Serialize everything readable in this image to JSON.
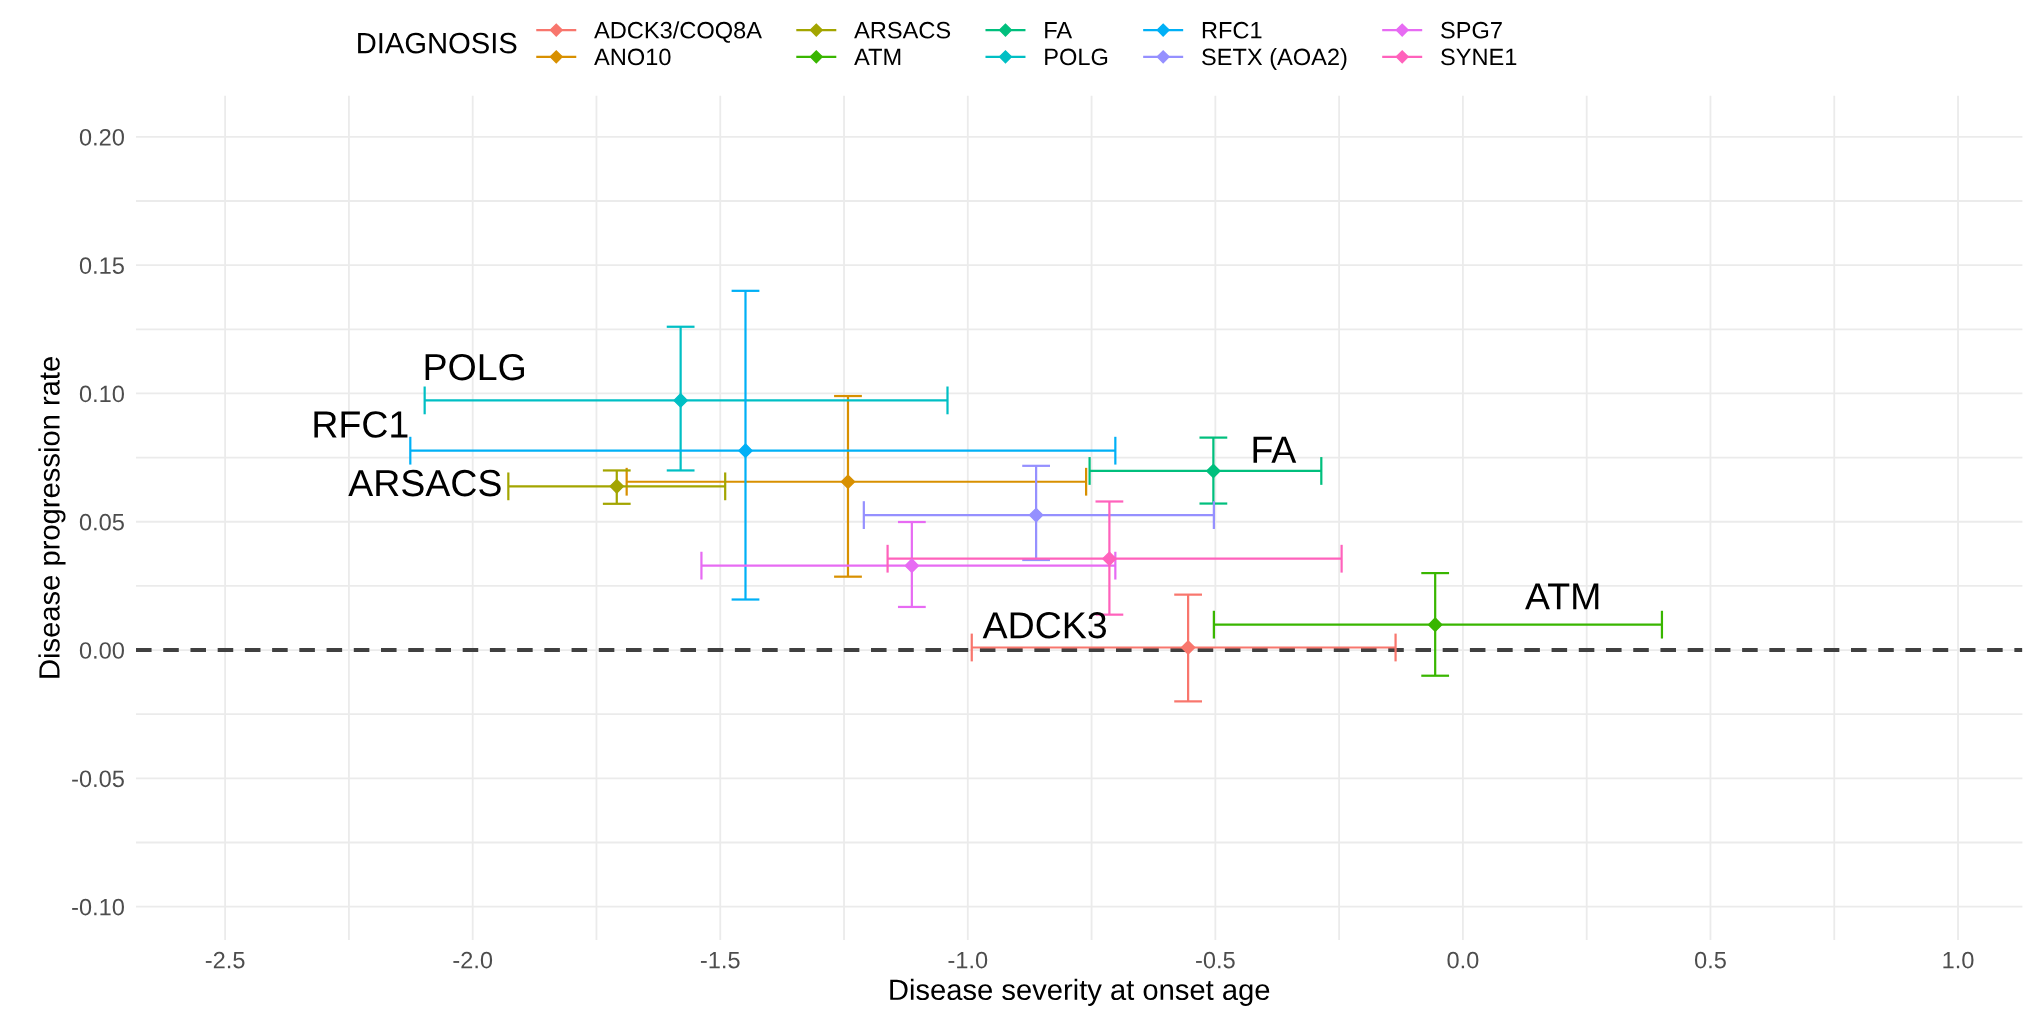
{
  "chart_data": {
    "type": "scatter",
    "xlabel": "Disease severity at onset age",
    "ylabel": "Disease progression rate",
    "legend_title": "DIAGNOSIS",
    "legend": "top",
    "grid": true,
    "marker": "diamond",
    "xlim": [
      -2.68,
      1.13
    ],
    "ylim": [
      -0.113,
      0.216
    ],
    "xticks": [
      -2.5,
      {
        "value": -2.25,
        "label": null
      },
      {
        "value": -2.0,
        "label": "-2.0"
      },
      {
        "value": -1.75,
        "label": null
      },
      -1.5,
      {
        "value": -1.25,
        "label": null
      },
      {
        "value": -1.0,
        "label": "-1.0"
      },
      {
        "value": -0.75,
        "label": null
      },
      -0.5,
      {
        "value": -0.25,
        "label": null
      },
      {
        "value": 0.0,
        "label": "0.0"
      },
      {
        "value": 0.25,
        "label": null
      },
      0.5,
      {
        "value": 0.75,
        "label": null
      },
      {
        "value": 1.0,
        "label": "1.0"
      }
    ],
    "yticks": [
      {
        "value": -0.1,
        "label": "-0.10"
      },
      {
        "value": -0.075,
        "label": null
      },
      {
        "value": -0.05,
        "label": "-0.05"
      },
      {
        "value": -0.025,
        "label": null
      },
      {
        "value": 0.0,
        "label": "0.00"
      },
      {
        "value": 0.025,
        "label": null
      },
      {
        "value": 0.05,
        "label": "0.05"
      },
      {
        "value": 0.075,
        "label": null
      },
      {
        "value": 0.1,
        "label": "0.10"
      },
      {
        "value": 0.125,
        "label": null
      },
      {
        "value": 0.15,
        "label": "0.15"
      },
      {
        "value": 0.175,
        "label": null
      },
      {
        "value": 0.2,
        "label": "0.20"
      }
    ],
    "ref_lines": [
      {
        "axis": "y",
        "value": 0,
        "label": null,
        "color": "#404040",
        "line_style": "dashed"
      }
    ],
    "series": [
      {
        "name": "ADCK3/COQ8A",
        "color": "#f8766d",
        "x": [
          -0.555
        ],
        "values": [
          0.001
        ],
        "errors": [
          [
            -0.02,
            0.0216
          ]
        ],
        "xerrors": [
          [
            -0.992,
            -0.136
          ]
        ]
      },
      {
        "name": "ANO10",
        "color": "#d89000",
        "x": [
          -1.242
        ],
        "values": [
          0.0656
        ],
        "errors": [
          [
            0.0286,
            0.099
          ]
        ],
        "xerrors": [
          [
            -1.689,
            -0.761
          ]
        ]
      },
      {
        "name": "ARSACS",
        "color": "#a3a500",
        "x": [
          -1.709
        ],
        "values": [
          0.0638
        ],
        "errors": [
          [
            0.057,
            0.07
          ]
        ],
        "xerrors": [
          [
            -1.928,
            -1.49
          ]
        ]
      },
      {
        "name": "ATM",
        "color": "#39b600",
        "x": [
          -0.056
        ],
        "values": [
          0.0099
        ],
        "errors": [
          [
            -0.01,
            0.03
          ]
        ],
        "xerrors": [
          [
            -0.503,
            0.402
          ]
        ]
      },
      {
        "name": "FA",
        "color": "#00bf7d",
        "x": [
          -0.504
        ],
        "values": [
          0.0698
        ],
        "errors": [
          [
            0.0571,
            0.0828
          ]
        ],
        "xerrors": [
          [
            -0.754,
            -0.286
          ]
        ]
      },
      {
        "name": "POLG",
        "color": "#00bfc4",
        "x": [
          -1.58
        ],
        "values": [
          0.0973
        ],
        "errors": [
          [
            0.07,
            0.126
          ]
        ],
        "xerrors": [
          [
            -2.097,
            -1.041
          ]
        ]
      },
      {
        "name": "RFC1",
        "color": "#00b0f6",
        "x": [
          -1.449
        ],
        "values": [
          0.0777
        ],
        "errors": [
          [
            0.0197,
            0.14
          ]
        ],
        "xerrors": [
          [
            -2.126,
            -0.702
          ]
        ]
      },
      {
        "name": "SETX (AOA2)",
        "color": "#9590ff",
        "x": [
          -0.862
        ],
        "values": [
          0.0526
        ],
        "errors": [
          [
            0.0351,
            0.0718
          ]
        ],
        "xerrors": [
          [
            -1.21,
            -0.503
          ]
        ]
      },
      {
        "name": "SPG7",
        "color": "#e76bf3",
        "x": [
          -1.113
        ],
        "values": [
          0.0329
        ],
        "errors": [
          [
            0.0168,
            0.0499
          ]
        ],
        "xerrors": [
          [
            -1.538,
            -0.702
          ]
        ]
      },
      {
        "name": "SYNE1",
        "color": "#ff62bc",
        "x": [
          -0.714
        ],
        "values": [
          0.0356
        ],
        "errors": [
          [
            0.0138,
            0.0579
          ]
        ],
        "xerrors": [
          [
            -1.162,
            -0.245
          ]
        ]
      }
    ],
    "annotations": [
      {
        "text": "POLG",
        "x": -2.097,
        "y": 0.0973
      },
      {
        "text": "RFC1",
        "x": -2.126,
        "y": 0.0777
      },
      {
        "text": "ARSACS",
        "x": -1.928,
        "y": 0.0638
      },
      {
        "text": "ADCK3",
        "x": -0.555,
        "y": 0.001
      },
      {
        "text": "FA",
        "x": -0.504,
        "y": 0.0698
      },
      {
        "text": "ATM",
        "x": -0.056,
        "y": 0.0099
      }
    ]
  }
}
